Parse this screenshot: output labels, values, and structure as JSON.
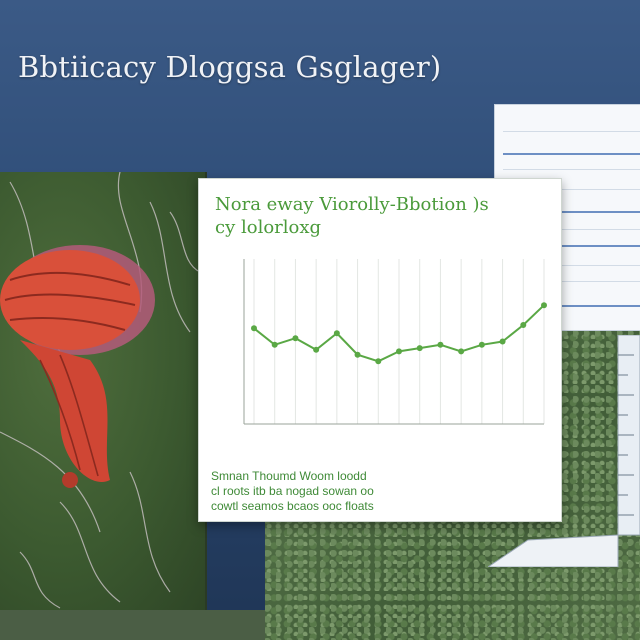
{
  "page": {
    "title": "Bbtiicacy Dloggsa Gsglager)"
  },
  "chart_card": {
    "title_line1": "Nora eway Viorolly-Bbotion )s",
    "title_line2": "cy lolorloxg",
    "caption_line1": "Smnan Thoumd Woom loodd",
    "caption_line2": "cl roots itb ba nogad sowan oo",
    "caption_line3": "cowtl seamos bcaos ooc floats"
  },
  "chart_data": {
    "type": "line",
    "title": "Nora eway Viorolly-Bbotion )s cy lolorloxg",
    "xlabel": "",
    "ylabel": "",
    "x": [
      1,
      2,
      3,
      4,
      5,
      6,
      7,
      8,
      9,
      10,
      11,
      12,
      13,
      14,
      15
    ],
    "values": [
      0.58,
      0.48,
      0.52,
      0.45,
      0.55,
      0.42,
      0.38,
      0.44,
      0.46,
      0.48,
      0.44,
      0.48,
      0.5,
      0.6,
      0.72
    ],
    "ylim": [
      0,
      1
    ],
    "grid": true,
    "series_color": "#5aa845"
  },
  "colors": {
    "background": "#2c4a74",
    "chart_accent": "#4a9a3a",
    "organ": "#d9503a"
  }
}
